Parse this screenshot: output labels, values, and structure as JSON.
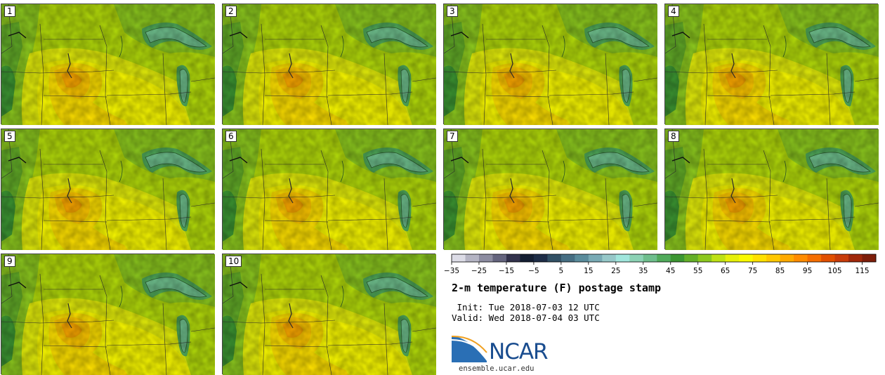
{
  "panels": [
    {
      "label": "1"
    },
    {
      "label": "2"
    },
    {
      "label": "3"
    },
    {
      "label": "4"
    },
    {
      "label": "5"
    },
    {
      "label": "6"
    },
    {
      "label": "7"
    },
    {
      "label": "8"
    },
    {
      "label": "9"
    },
    {
      "label": "10"
    }
  ],
  "colorbar": {
    "tick_labels": [
      "−35",
      "−25",
      "−15",
      "−5",
      "5",
      "15",
      "25",
      "35",
      "45",
      "55",
      "65",
      "75",
      "85",
      "95",
      "105",
      "115"
    ],
    "colors": [
      "#dcdce6",
      "#b4b4c3",
      "#8c8ca0",
      "#64647d",
      "#32324b",
      "#141e32",
      "#1e2d46",
      "#325064",
      "#466e82",
      "#5a8c9b",
      "#78aab4",
      "#96c8c8",
      "#a0e6dc",
      "#8cd2b4",
      "#6ebe8c",
      "#50aa5a",
      "#3c9632",
      "#64af28",
      "#8cc81e",
      "#bee114",
      "#e6f00a",
      "#fafa00",
      "#ffe100",
      "#ffc800",
      "#ffaa00",
      "#ff8c00",
      "#f56e00",
      "#e15000",
      "#c83c0a",
      "#a0280a",
      "#7d1e0a"
    ]
  },
  "title": "2-m temperature (F) postage stamp",
  "init": " Init: Tue 2018-07-03 12 UTC",
  "valid": "Valid: Wed 2018-07-04 03 UTC",
  "logo": {
    "text": "NCAR",
    "url": "ensemble.ucar.edu"
  }
}
